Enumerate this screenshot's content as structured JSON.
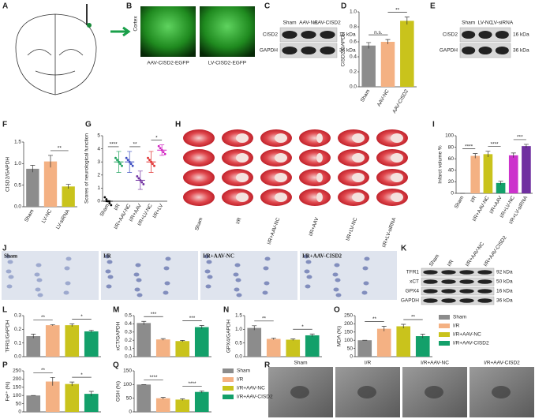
{
  "panel_labels": [
    "A",
    "B",
    "C",
    "D",
    "E",
    "F",
    "G",
    "H",
    "I",
    "J",
    "K",
    "L",
    "M",
    "N",
    "O",
    "P",
    "Q",
    "R"
  ],
  "fluorescence": {
    "side_label": "Cortex",
    "captions": [
      "AAV-CISD2-EGFP",
      "LV-CISD2-EGFP"
    ]
  },
  "blots": [
    {
      "lanes": [
        "Sham",
        "AAV-NC",
        "AAV-CISD2"
      ],
      "bands": [
        {
          "name": "CISD2",
          "size": "16 kDa"
        },
        {
          "name": "GAPDH",
          "size": "36 kDa"
        }
      ]
    },
    {
      "lanes": [
        "Sham",
        "LV-NC",
        "LV-siRNA"
      ],
      "bands": [
        {
          "name": "CISD2",
          "size": "16 kDa"
        },
        {
          "name": "GAPDH",
          "size": "36 kDa"
        }
      ]
    },
    {
      "lanes": [
        "Sham",
        "I/R",
        "I/R+AAV-NC",
        "I/R+AAV-CISD2"
      ],
      "bands": [
        {
          "name": "TFR1",
          "size": "92 kDa"
        },
        {
          "name": "xCT",
          "size": "50 kDa"
        },
        {
          "name": "GPX4",
          "size": "16 kDa"
        },
        {
          "name": "GAPDH",
          "size": "36 kDa"
        }
      ]
    }
  ],
  "ttc_labels": [
    "Sham",
    "I/R",
    "I/R+AAV-NC",
    "I/R+AAV",
    "I/R+LV-NC",
    "I/R+LV-siRNA"
  ],
  "nissl_labels": [
    "Sham",
    "I/R",
    "I/R+AAV-NC",
    "I/R+AAV-CISD2"
  ],
  "em_labels": [
    "Sham",
    "I/R",
    "I/R+AAV-NC",
    "I/R+AAV-CISD2"
  ],
  "legend": [
    {
      "name": "Sham",
      "color": "#8c8c8c"
    },
    {
      "name": "I/R",
      "color": "#f4b183"
    },
    {
      "name": "I/R+AAV-NC",
      "color": "#c9c31c"
    },
    {
      "name": "I/R+AAV-CISD2",
      "color": "#13a06a"
    }
  ],
  "chart_data": [
    {
      "type": "bar",
      "ylabel": "CISD2/GAPDH",
      "categories": [
        "Sham",
        "AAV-NC",
        "AAV-CISD2"
      ],
      "values": [
        0.55,
        0.6,
        0.88
      ],
      "errors": [
        0.04,
        0.03,
        0.05
      ],
      "colors": [
        "#8c8c8c",
        "#f4b183",
        "#c9c31c"
      ],
      "ylim": [
        0,
        1.0
      ],
      "yticks": [
        {
          "value": 0,
          "label": "0.0"
        },
        0.2,
        0.4,
        0.6,
        0.8,
        {
          "value": 1,
          "label": "1.0"
        }
      ],
      "annotations": [
        "n.s.",
        "**"
      ]
    },
    {
      "type": "bar",
      "ylabel": "CISD2/GAPDH",
      "categories": [
        "Sham",
        "LV-NC",
        "LV-siRNA"
      ],
      "values": [
        0.88,
        1.05,
        0.47
      ],
      "errors": [
        0.08,
        0.14,
        0.05
      ],
      "colors": [
        "#8c8c8c",
        "#f4b183",
        "#c9c31c"
      ],
      "ylim": [
        0,
        1.5
      ],
      "yticks": [
        {
          "value": 0,
          "label": "0.0"
        },
        0.5,
        {
          "value": 1,
          "label": "1.0"
        },
        1.5
      ],
      "annotations": [
        "**"
      ]
    },
    {
      "type": "dot",
      "ylabel": "Scores of neurological function",
      "categories": [
        "Sham",
        "I/R",
        "I/R+AAV-NC",
        "I/R+AAV",
        "I/R+LV-NC",
        "I/R+LV"
      ],
      "values": [
        0,
        3,
        3,
        1.6,
        3,
        3.9
      ],
      "errors": [
        0.05,
        0.8,
        0.8,
        0.7,
        0.8,
        0.4
      ],
      "colors": [
        "#000000",
        "#1aa05a",
        "#3b4cc0",
        "#7030a0",
        "#e03030",
        "#d020c0"
      ],
      "ylim": [
        0,
        5
      ],
      "yticks": [
        0,
        1,
        2,
        3,
        4,
        5
      ],
      "annotations": [
        "****",
        "**",
        "*"
      ]
    },
    {
      "type": "bar",
      "ylabel": "Infarct volume %",
      "categories": [
        "Sham",
        "I/R",
        "I/R+AAV-NC",
        "I/R+AAV",
        "I/R+LV-NC",
        "I/R+LV-siRNA"
      ],
      "values": [
        0,
        65,
        68,
        18,
        66,
        82
      ],
      "errors": [
        0,
        4,
        5,
        3,
        4,
        3
      ],
      "colors": [
        "#8c8c8c",
        "#f4b183",
        "#c9c31c",
        "#13a06a",
        "#cc33cc",
        "#7030a0"
      ],
      "ylim": [
        0,
        100
      ],
      "yticks": [
        0,
        20,
        40,
        60,
        80,
        100
      ],
      "annotations": [
        "****",
        "****",
        "***"
      ]
    },
    {
      "type": "bar",
      "ylabel": "TFR1/GAPDH",
      "values": [
        0.15,
        0.23,
        0.23,
        0.185
      ],
      "errors": [
        0.015,
        0.004,
        0.01,
        0.008
      ],
      "colors": [
        "#8c8c8c",
        "#f4b183",
        "#c9c31c",
        "#13a06a"
      ],
      "ylim": [
        0,
        0.3
      ],
      "yticks": [
        {
          "value": 0,
          "label": "0.0"
        },
        0.1,
        0.2,
        0.3
      ],
      "annotations": [
        "**",
        "*"
      ]
    },
    {
      "type": "bar",
      "ylabel": "xCT/GAPDH",
      "values": [
        0.41,
        0.21,
        0.19,
        0.36
      ],
      "errors": [
        0.02,
        0.01,
        0.008,
        0.02
      ],
      "colors": [
        "#8c8c8c",
        "#f4b183",
        "#c9c31c",
        "#13a06a"
      ],
      "ylim": [
        0,
        0.5
      ],
      "yticks": [
        {
          "value": 0,
          "label": "0.0"
        },
        0.1,
        0.2,
        0.3,
        0.4,
        0.5
      ],
      "annotations": [
        "***",
        "***"
      ]
    },
    {
      "type": "bar",
      "ylabel": "GPX4/GAPDH",
      "values": [
        1.05,
        0.65,
        0.62,
        0.78
      ],
      "errors": [
        0.08,
        0.03,
        0.03,
        0.05
      ],
      "colors": [
        "#8c8c8c",
        "#f4b183",
        "#c9c31c",
        "#13a06a"
      ],
      "ylim": [
        0,
        1.5
      ],
      "yticks": [
        {
          "value": 0,
          "label": "0.0"
        },
        0.5,
        {
          "value": 1,
          "label": "1.0"
        },
        1.5
      ],
      "annotations": [
        "**",
        "*"
      ]
    },
    {
      "type": "bar",
      "ylabel": "MDA (%)",
      "values": [
        100,
        170,
        185,
        125
      ],
      "errors": [
        0,
        15,
        12,
        12
      ],
      "colors": [
        "#8c8c8c",
        "#f4b183",
        "#c9c31c",
        "#13a06a"
      ],
      "ylim": [
        0,
        250
      ],
      "yticks": [
        0,
        50,
        100,
        150,
        200,
        250
      ],
      "annotations": [
        "**",
        "**"
      ]
    },
    {
      "type": "bar",
      "ylabel": "Fe²⁺ (%)",
      "values": [
        100,
        185,
        170,
        110
      ],
      "errors": [
        0,
        25,
        12,
        15
      ],
      "colors": [
        "#8c8c8c",
        "#f4b183",
        "#c9c31c",
        "#13a06a"
      ],
      "ylim": [
        0,
        250
      ],
      "yticks": [
        0,
        50,
        100,
        150,
        200,
        250
      ],
      "annotations": [
        "**",
        "*"
      ]
    },
    {
      "type": "bar",
      "ylabel": "GSH (%)",
      "values": [
        100,
        50,
        45,
        73
      ],
      "errors": [
        0,
        3,
        3,
        4
      ],
      "colors": [
        "#8c8c8c",
        "#f4b183",
        "#c9c31c",
        "#13a06a"
      ],
      "ylim": [
        0,
        150
      ],
      "yticks": [
        0,
        50,
        100,
        150
      ],
      "annotations": [
        "****",
        "****"
      ]
    }
  ]
}
